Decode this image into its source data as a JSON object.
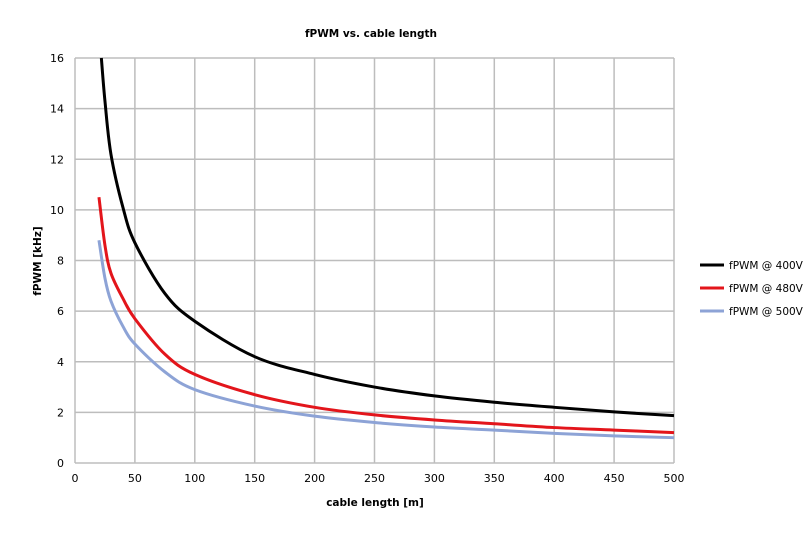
{
  "chart_data": {
    "type": "line",
    "title": "fPWM vs. cable length",
    "xlabel": "cable length [m]",
    "ylabel": "fPWM [kHz]",
    "xlim": [
      0,
      500
    ],
    "ylim": [
      0,
      16
    ],
    "xticks": [
      0,
      50,
      100,
      150,
      200,
      250,
      300,
      350,
      400,
      450,
      500
    ],
    "yticks": [
      0,
      2,
      4,
      6,
      8,
      10,
      12,
      14,
      16
    ],
    "grid": true,
    "legend_position": "right",
    "series": [
      {
        "name": "fPWM @ 400V",
        "color": "#000000",
        "x": [
          22,
          25,
          30,
          40,
          50,
          75,
          100,
          150,
          200,
          250,
          300,
          350,
          400,
          450,
          500
        ],
        "y": [
          16,
          14.3,
          12.2,
          10.1,
          8.7,
          6.7,
          5.6,
          4.2,
          3.5,
          3.0,
          2.65,
          2.4,
          2.2,
          2.02,
          1.87
        ]
      },
      {
        "name": "fPWM @ 480V",
        "color": "#e3151b",
        "x": [
          20,
          25,
          30,
          40,
          50,
          75,
          100,
          150,
          200,
          250,
          300,
          350,
          400,
          450,
          500
        ],
        "y": [
          10.5,
          8.6,
          7.5,
          6.5,
          5.7,
          4.3,
          3.5,
          2.7,
          2.2,
          1.9,
          1.7,
          1.55,
          1.4,
          1.3,
          1.2
        ]
      },
      {
        "name": "fPWM @ 500V",
        "color": "#8da3d6",
        "x": [
          20,
          25,
          30,
          40,
          50,
          75,
          100,
          150,
          200,
          250,
          300,
          350,
          400,
          450,
          500
        ],
        "y": [
          8.8,
          7.3,
          6.4,
          5.4,
          4.7,
          3.6,
          2.9,
          2.25,
          1.85,
          1.6,
          1.42,
          1.3,
          1.17,
          1.07,
          1.0
        ]
      }
    ]
  }
}
